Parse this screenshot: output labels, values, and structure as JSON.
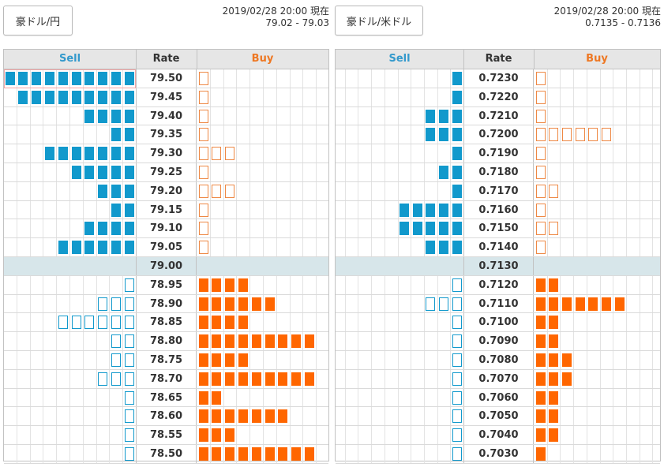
{
  "colors": {
    "sell": "#1199cc",
    "buy": "#ff6600",
    "mid_row": "#d7e6ea"
  },
  "panels": [
    {
      "pair_label": "豪ドル/円",
      "timestamp": "2019/02/28 20:00 現在",
      "range": "79.02 - 79.03",
      "header": {
        "sell": "Sell",
        "rate": "Rate",
        "buy": "Buy"
      },
      "mid_index": 10,
      "highlight_row": 0,
      "rows": [
        {
          "rate": "79.50",
          "sell": 10,
          "sell_empty": false,
          "buy": 1,
          "buy_empty": true
        },
        {
          "rate": "79.45",
          "sell": 9,
          "sell_empty": false,
          "buy": 1,
          "buy_empty": true
        },
        {
          "rate": "79.40",
          "sell": 4,
          "sell_empty": false,
          "buy": 1,
          "buy_empty": true
        },
        {
          "rate": "79.35",
          "sell": 2,
          "sell_empty": false,
          "buy": 1,
          "buy_empty": true
        },
        {
          "rate": "79.30",
          "sell": 7,
          "sell_empty": false,
          "buy": 3,
          "buy_empty": true
        },
        {
          "rate": "79.25",
          "sell": 5,
          "sell_empty": false,
          "buy": 1,
          "buy_empty": true
        },
        {
          "rate": "79.20",
          "sell": 3,
          "sell_empty": false,
          "buy": 3,
          "buy_empty": true
        },
        {
          "rate": "79.15",
          "sell": 2,
          "sell_empty": false,
          "buy": 1,
          "buy_empty": true
        },
        {
          "rate": "79.10",
          "sell": 4,
          "sell_empty": false,
          "buy": 1,
          "buy_empty": true
        },
        {
          "rate": "79.05",
          "sell": 6,
          "sell_empty": false,
          "buy": 1,
          "buy_empty": true
        },
        {
          "rate": "79.00",
          "sell": 0,
          "sell_empty": false,
          "buy": 0,
          "buy_empty": false
        },
        {
          "rate": "78.95",
          "sell": 1,
          "sell_empty": true,
          "buy": 4,
          "buy_empty": false
        },
        {
          "rate": "78.90",
          "sell": 3,
          "sell_empty": true,
          "buy": 6,
          "buy_empty": false
        },
        {
          "rate": "78.85",
          "sell": 6,
          "sell_empty": true,
          "buy": 4,
          "buy_empty": false
        },
        {
          "rate": "78.80",
          "sell": 2,
          "sell_empty": true,
          "buy": 9,
          "buy_empty": false
        },
        {
          "rate": "78.75",
          "sell": 2,
          "sell_empty": true,
          "buy": 4,
          "buy_empty": false
        },
        {
          "rate": "78.70",
          "sell": 3,
          "sell_empty": true,
          "buy": 9,
          "buy_empty": false
        },
        {
          "rate": "78.65",
          "sell": 1,
          "sell_empty": true,
          "buy": 2,
          "buy_empty": false
        },
        {
          "rate": "78.60",
          "sell": 1,
          "sell_empty": true,
          "buy": 7,
          "buy_empty": false
        },
        {
          "rate": "78.55",
          "sell": 1,
          "sell_empty": true,
          "buy": 3,
          "buy_empty": false
        },
        {
          "rate": "78.50",
          "sell": 1,
          "sell_empty": true,
          "buy": 9,
          "buy_empty": false
        }
      ]
    },
    {
      "pair_label": "豪ドル/米ドル",
      "timestamp": "2019/02/28 20:00 現在",
      "range": "0.7135 - 0.7136",
      "header": {
        "sell": "Sell",
        "rate": "Rate",
        "buy": "Buy"
      },
      "mid_index": 10,
      "highlight_row": -1,
      "rows": [
        {
          "rate": "0.7230",
          "sell": 1,
          "sell_empty": false,
          "buy": 1,
          "buy_empty": true
        },
        {
          "rate": "0.7220",
          "sell": 1,
          "sell_empty": false,
          "buy": 1,
          "buy_empty": true
        },
        {
          "rate": "0.7210",
          "sell": 3,
          "sell_empty": false,
          "buy": 1,
          "buy_empty": true
        },
        {
          "rate": "0.7200",
          "sell": 3,
          "sell_empty": false,
          "buy": 6,
          "buy_empty": true
        },
        {
          "rate": "0.7190",
          "sell": 1,
          "sell_empty": false,
          "buy": 1,
          "buy_empty": true
        },
        {
          "rate": "0.7180",
          "sell": 2,
          "sell_empty": false,
          "buy": 1,
          "buy_empty": true
        },
        {
          "rate": "0.7170",
          "sell": 1,
          "sell_empty": false,
          "buy": 2,
          "buy_empty": true
        },
        {
          "rate": "0.7160",
          "sell": 5,
          "sell_empty": false,
          "buy": 1,
          "buy_empty": true
        },
        {
          "rate": "0.7150",
          "sell": 5,
          "sell_empty": false,
          "buy": 2,
          "buy_empty": true
        },
        {
          "rate": "0.7140",
          "sell": 3,
          "sell_empty": false,
          "buy": 1,
          "buy_empty": true
        },
        {
          "rate": "0.7130",
          "sell": 0,
          "sell_empty": false,
          "buy": 0,
          "buy_empty": false
        },
        {
          "rate": "0.7120",
          "sell": 1,
          "sell_empty": true,
          "buy": 2,
          "buy_empty": false
        },
        {
          "rate": "0.7110",
          "sell": 3,
          "sell_empty": true,
          "buy": 7,
          "buy_empty": false
        },
        {
          "rate": "0.7100",
          "sell": 1,
          "sell_empty": true,
          "buy": 2,
          "buy_empty": false
        },
        {
          "rate": "0.7090",
          "sell": 1,
          "sell_empty": true,
          "buy": 2,
          "buy_empty": false
        },
        {
          "rate": "0.7080",
          "sell": 1,
          "sell_empty": true,
          "buy": 3,
          "buy_empty": false
        },
        {
          "rate": "0.7070",
          "sell": 1,
          "sell_empty": true,
          "buy": 3,
          "buy_empty": false
        },
        {
          "rate": "0.7060",
          "sell": 1,
          "sell_empty": true,
          "buy": 2,
          "buy_empty": false
        },
        {
          "rate": "0.7050",
          "sell": 1,
          "sell_empty": true,
          "buy": 2,
          "buy_empty": false
        },
        {
          "rate": "0.7040",
          "sell": 1,
          "sell_empty": true,
          "buy": 2,
          "buy_empty": false
        },
        {
          "rate": "0.7030",
          "sell": 1,
          "sell_empty": true,
          "buy": 1,
          "buy_empty": false
        }
      ]
    }
  ]
}
